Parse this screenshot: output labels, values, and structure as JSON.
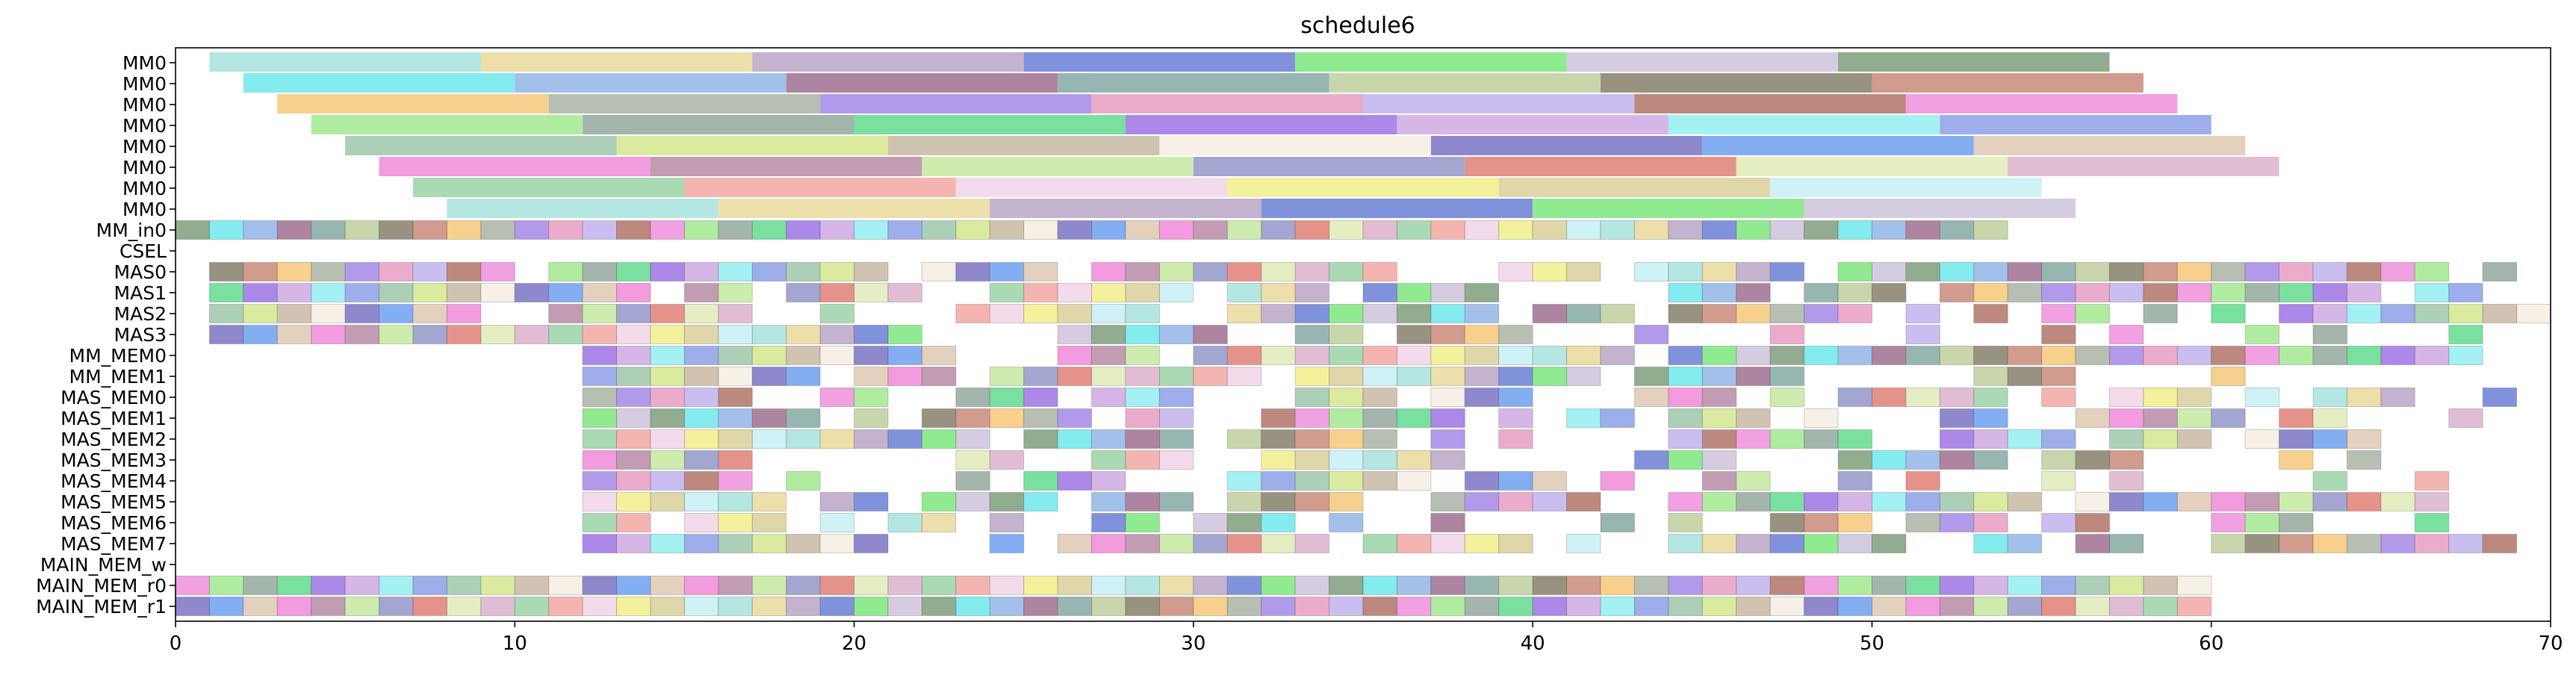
{
  "chart_data": {
    "type": "gantt",
    "title": "schedule6",
    "xlabel": "",
    "ylabel": "",
    "xlim": [
      0,
      70
    ],
    "xticks": [
      0,
      10,
      20,
      30,
      40,
      50,
      60,
      70
    ],
    "grid": false,
    "rows": [
      "MM0",
      "MM0",
      "MM0",
      "MM0",
      "MM0",
      "MM0",
      "MM0",
      "MM0",
      "MM_in0",
      "CSEL",
      "MAS0",
      "MAS1",
      "MAS2",
      "MAS3",
      "MM_MEM0",
      "MM_MEM1",
      "MAS_MEM0",
      "MAS_MEM1",
      "MAS_MEM2",
      "MAS_MEM3",
      "MAS_MEM4",
      "MAS_MEM5",
      "MAS_MEM6",
      "MAS_MEM7",
      "MAIN_MEM_w",
      "MAIN_MEM_r0",
      "MAIN_MEM_r1"
    ],
    "lanes": [
      {
        "row": 0,
        "starts": [
          1,
          9,
          17,
          25,
          33,
          41,
          49
        ],
        "end": 57
      },
      {
        "row": 1,
        "starts": [
          2,
          10,
          18,
          26,
          34,
          42,
          50
        ],
        "end": 58
      },
      {
        "row": 2,
        "starts": [
          3,
          11,
          19,
          27,
          35,
          43,
          51
        ],
        "end": 59
      },
      {
        "row": 3,
        "starts": [
          4,
          12,
          20,
          28,
          36,
          44,
          52
        ],
        "end": 60
      },
      {
        "row": 4,
        "starts": [
          5,
          13,
          21,
          29,
          37,
          45,
          53
        ],
        "end": 61
      },
      {
        "row": 5,
        "starts": [
          6,
          14,
          22,
          30,
          38,
          46,
          54
        ],
        "end": 62
      },
      {
        "row": 6,
        "starts": [
          7,
          15,
          23,
          31,
          39,
          47
        ],
        "end": 55
      },
      {
        "row": 7,
        "starts": [
          8,
          16,
          24,
          32,
          40,
          48
        ],
        "end": 56
      }
    ],
    "unit_rows": [
      {
        "row": 8,
        "ranges": [
          [
            0,
            54
          ]
        ]
      },
      {
        "row": 10,
        "ranges": [
          [
            1,
            10
          ],
          [
            11,
            21
          ],
          [
            22,
            26
          ],
          [
            27,
            36
          ],
          [
            39,
            42
          ],
          [
            43,
            48
          ],
          [
            49,
            67
          ],
          [
            68,
            69
          ]
        ]
      },
      {
        "row": 11,
        "ranges": [
          [
            1,
            14
          ],
          [
            15,
            17
          ],
          [
            18,
            22
          ],
          [
            24,
            30
          ],
          [
            31,
            34
          ],
          [
            35,
            39
          ],
          [
            44,
            47
          ],
          [
            48,
            51
          ],
          [
            52,
            65
          ],
          [
            66,
            68
          ]
        ]
      },
      {
        "row": 12,
        "ranges": [
          [
            1,
            9
          ],
          [
            11,
            17
          ],
          [
            19,
            20
          ],
          [
            23,
            29
          ],
          [
            31,
            39
          ],
          [
            40,
            43
          ],
          [
            44,
            50
          ],
          [
            51,
            52
          ],
          [
            53,
            54
          ],
          [
            55,
            57
          ],
          [
            58,
            59
          ],
          [
            60,
            61
          ],
          [
            62,
            70
          ]
        ]
      },
      {
        "row": 13,
        "ranges": [
          [
            1,
            22
          ],
          [
            26,
            31
          ],
          [
            33,
            35
          ],
          [
            36,
            40
          ],
          [
            43,
            44
          ],
          [
            47,
            48
          ],
          [
            51,
            52
          ],
          [
            55,
            56
          ],
          [
            57,
            58
          ],
          [
            61,
            62
          ],
          [
            63,
            64
          ],
          [
            67,
            68
          ]
        ]
      },
      {
        "row": 14,
        "ranges": [
          [
            12,
            23
          ],
          [
            26,
            29
          ],
          [
            30,
            43
          ],
          [
            44,
            68
          ]
        ]
      },
      {
        "row": 15,
        "ranges": [
          [
            12,
            19
          ],
          [
            20,
            23
          ],
          [
            24,
            32
          ],
          [
            33,
            42
          ],
          [
            43,
            48
          ],
          [
            53,
            56
          ],
          [
            60,
            61
          ]
        ]
      },
      {
        "row": 16,
        "ranges": [
          [
            12,
            17
          ],
          [
            19,
            21
          ],
          [
            23,
            26
          ],
          [
            27,
            30
          ],
          [
            33,
            36
          ],
          [
            37,
            40
          ],
          [
            43,
            46
          ],
          [
            47,
            48
          ],
          [
            49,
            54
          ],
          [
            55,
            56
          ],
          [
            57,
            60
          ],
          [
            61,
            62
          ],
          [
            63,
            66
          ],
          [
            68,
            69
          ]
        ]
      },
      {
        "row": 17,
        "ranges": [
          [
            12,
            19
          ],
          [
            20,
            21
          ],
          [
            22,
            27
          ],
          [
            28,
            30
          ],
          [
            32,
            38
          ],
          [
            39,
            40
          ],
          [
            41,
            43
          ],
          [
            44,
            47
          ],
          [
            48,
            49
          ],
          [
            52,
            54
          ],
          [
            56,
            61
          ],
          [
            62,
            64
          ],
          [
            67,
            68
          ]
        ]
      },
      {
        "row": 18,
        "ranges": [
          [
            12,
            24
          ],
          [
            25,
            30
          ],
          [
            31,
            36
          ],
          [
            37,
            38
          ],
          [
            39,
            40
          ],
          [
            44,
            50
          ],
          [
            52,
            56
          ],
          [
            57,
            60
          ],
          [
            61,
            65
          ]
        ]
      },
      {
        "row": 19,
        "ranges": [
          [
            12,
            17
          ],
          [
            23,
            25
          ],
          [
            27,
            30
          ],
          [
            32,
            38
          ],
          [
            43,
            46
          ],
          [
            49,
            54
          ],
          [
            55,
            58
          ],
          [
            62,
            63
          ],
          [
            64,
            65
          ]
        ]
      },
      {
        "row": 20,
        "ranges": [
          [
            12,
            17
          ],
          [
            18,
            19
          ],
          [
            23,
            24
          ],
          [
            25,
            28
          ],
          [
            31,
            37
          ],
          [
            38,
            41
          ],
          [
            42,
            43
          ],
          [
            45,
            47
          ],
          [
            49,
            50
          ],
          [
            51,
            52
          ],
          [
            55,
            56
          ],
          [
            57,
            58
          ],
          [
            63,
            64
          ],
          [
            66,
            67
          ]
        ]
      },
      {
        "row": 21,
        "ranges": [
          [
            12,
            18
          ],
          [
            19,
            21
          ],
          [
            22,
            26
          ],
          [
            27,
            30
          ],
          [
            31,
            35
          ],
          [
            37,
            42
          ],
          [
            44,
            55
          ],
          [
            56,
            66
          ],
          [
            66,
            67
          ]
        ]
      },
      {
        "row": 22,
        "ranges": [
          [
            12,
            14
          ],
          [
            15,
            18
          ],
          [
            19,
            20
          ],
          [
            21,
            23
          ],
          [
            24,
            25
          ],
          [
            27,
            29
          ],
          [
            30,
            33
          ],
          [
            34,
            35
          ],
          [
            37,
            38
          ],
          [
            42,
            43
          ],
          [
            44,
            45
          ],
          [
            47,
            50
          ],
          [
            51,
            54
          ],
          [
            55,
            57
          ],
          [
            60,
            62
          ],
          [
            62,
            63
          ],
          [
            66,
            67
          ]
        ]
      },
      {
        "row": 23,
        "ranges": [
          [
            12,
            21
          ],
          [
            24,
            25
          ],
          [
            26,
            34
          ],
          [
            35,
            40
          ],
          [
            41,
            42
          ],
          [
            44,
            51
          ],
          [
            53,
            55
          ],
          [
            56,
            58
          ],
          [
            60,
            66
          ],
          [
            66,
            69
          ]
        ]
      },
      {
        "row": 25,
        "ranges": [
          [
            0,
            60
          ]
        ]
      },
      {
        "row": 26,
        "ranges": [
          [
            0,
            60
          ]
        ]
      }
    ]
  }
}
